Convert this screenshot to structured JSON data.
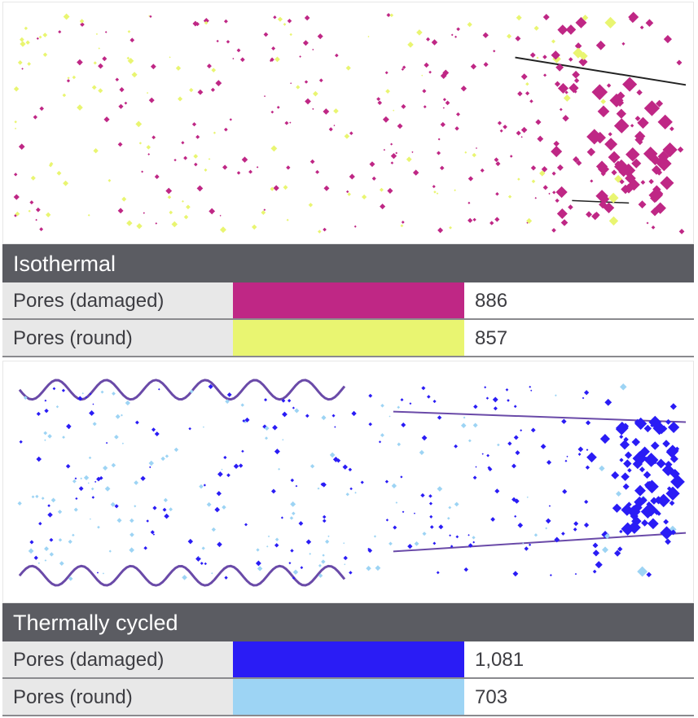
{
  "panels": [
    {
      "title": "Isothermal",
      "rows": [
        {
          "label": "Pores (damaged)",
          "color": "#bf2785",
          "value": "886"
        },
        {
          "label": "Pores (round)",
          "color": "#e9f571",
          "value": "857"
        }
      ]
    },
    {
      "title": "Thermally cycled",
      "rows": [
        {
          "label": "Pores (damaged)",
          "color": "#2a1cf5",
          "value": "1,081"
        },
        {
          "label": "Pores (round)",
          "color": "#9dd4f4",
          "value": "703"
        }
      ]
    }
  ]
}
